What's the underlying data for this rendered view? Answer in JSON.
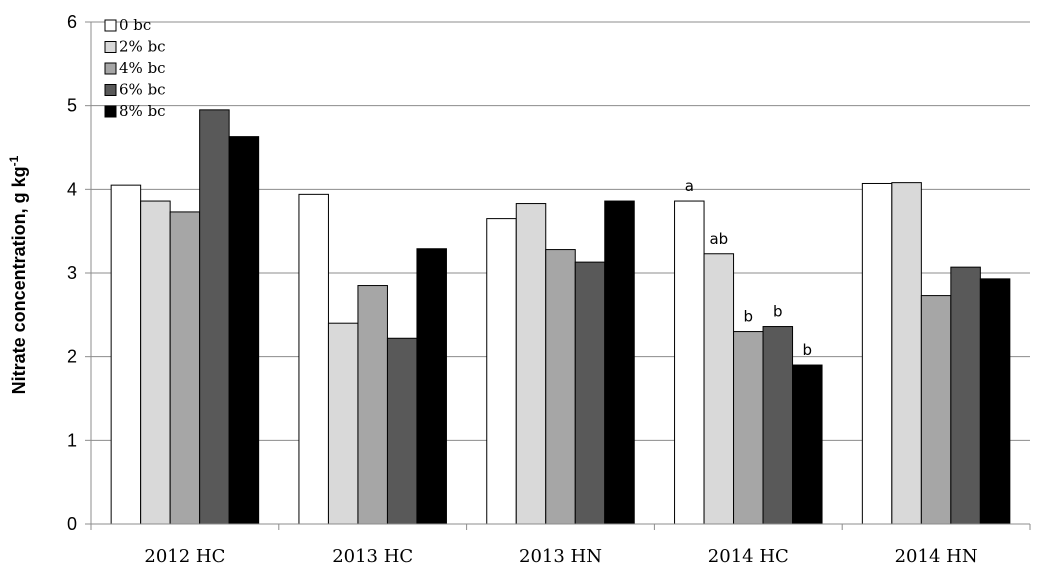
{
  "chart_data": {
    "type": "bar",
    "categories": [
      "2012 HC",
      "2013 HC",
      "2013 HN",
      "2014 HC",
      "2014 HN"
    ],
    "series": [
      {
        "name": "0 bc",
        "color": "#ffffff",
        "values": [
          4.05,
          3.94,
          3.65,
          3.86,
          4.07
        ]
      },
      {
        "name": "2% bc",
        "color": "#d9d9d9",
        "values": [
          3.86,
          2.4,
          3.83,
          3.23,
          4.08
        ]
      },
      {
        "name": "4% bc",
        "color": "#a6a6a6",
        "values": [
          3.73,
          2.85,
          3.28,
          2.3,
          2.73
        ]
      },
      {
        "name": "6% bc",
        "color": "#595959",
        "values": [
          4.95,
          2.22,
          3.13,
          2.36,
          3.07
        ]
      },
      {
        "name": "8% bc",
        "color": "#000000",
        "values": [
          4.63,
          3.29,
          3.86,
          1.9,
          2.93
        ]
      }
    ],
    "ylabel_main": "Nitrate concentration, g kg",
    "ylabel_sup": "-1",
    "ylim": [
      0,
      6
    ],
    "yticks": [
      "0",
      "1",
      "2",
      "3",
      "4",
      "5",
      "6"
    ],
    "grid": true,
    "legend_position": "top-left",
    "annotations": [
      {
        "category": 3,
        "series": 0,
        "text": "a"
      },
      {
        "category": 3,
        "series": 1,
        "text": "ab"
      },
      {
        "category": 3,
        "series": 2,
        "text": "b"
      },
      {
        "category": 3,
        "series": 3,
        "text": "b"
      },
      {
        "category": 3,
        "series": 4,
        "text": "b"
      }
    ]
  }
}
